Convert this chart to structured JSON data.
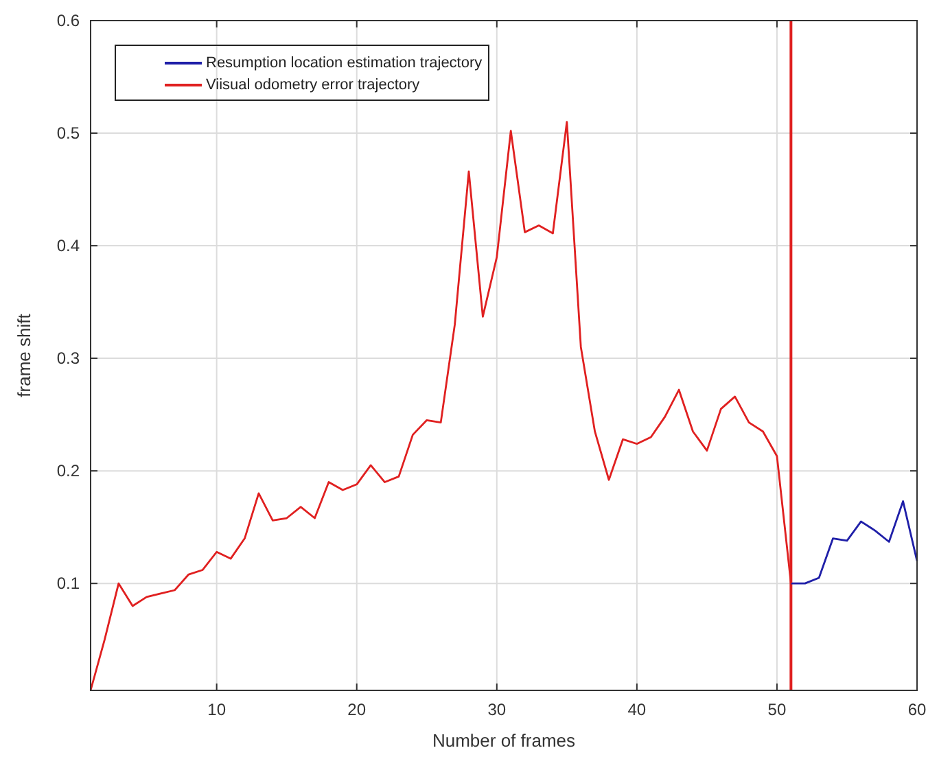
{
  "chart_data": {
    "type": "line",
    "xlabel": "Number of frames",
    "ylabel": "frame shift",
    "xlim": [
      1,
      60
    ],
    "xticks": [
      10,
      20,
      30,
      40,
      50,
      60
    ],
    "ylim": [
      0.005,
      0.6
    ],
    "yticks": [
      0.1,
      0.2,
      0.3,
      0.4,
      0.5,
      0.6
    ],
    "grid": true,
    "legend": "top left",
    "series": [
      {
        "name": "Resumption location estimation trajectory",
        "color": "#1f1fa8",
        "x": [
          51,
          52,
          53,
          54,
          55,
          56,
          57,
          58,
          59,
          60
        ],
        "values": [
          0.1,
          0.1,
          0.105,
          0.14,
          0.138,
          0.155,
          0.147,
          0.137,
          0.173,
          0.12
        ]
      },
      {
        "name": "Viisual odometry error trajectory",
        "color": "#e02020",
        "x": [
          1,
          2,
          3,
          4,
          5,
          6,
          7,
          8,
          9,
          10,
          11,
          12,
          13,
          14,
          15,
          16,
          17,
          18,
          19,
          20,
          21,
          22,
          23,
          24,
          25,
          26,
          27,
          28,
          29,
          30,
          31,
          32,
          33,
          34,
          35,
          36,
          37,
          38,
          39,
          40,
          41,
          42,
          43,
          44,
          45,
          46,
          47,
          48,
          49,
          50,
          51
        ],
        "values": [
          0.005,
          0.05,
          0.1,
          0.08,
          0.088,
          0.091,
          0.094,
          0.108,
          0.112,
          0.128,
          0.122,
          0.14,
          0.18,
          0.156,
          0.158,
          0.168,
          0.158,
          0.19,
          0.183,
          0.188,
          0.205,
          0.19,
          0.195,
          0.232,
          0.245,
          0.243,
          0.33,
          0.466,
          0.337,
          0.39,
          0.502,
          0.412,
          0.418,
          0.411,
          0.51,
          0.31,
          0.235,
          0.192,
          0.228,
          0.224,
          0.23,
          0.248,
          0.272,
          0.235,
          0.218,
          0.255,
          0.266,
          0.243,
          0.235,
          0.213,
          0.1
        ]
      }
    ],
    "ref_lines": [
      {
        "axis": "x",
        "value": 51,
        "color": "#e02020"
      }
    ]
  }
}
